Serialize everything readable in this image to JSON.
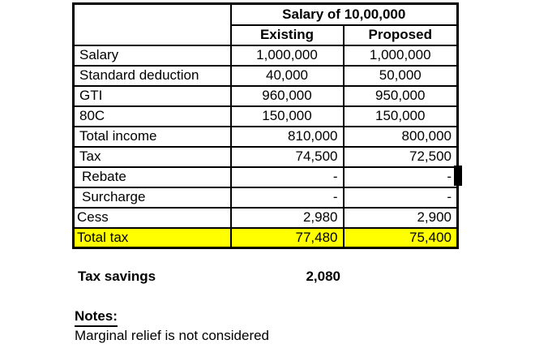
{
  "table": {
    "header": {
      "title": "Salary of 10,00,000",
      "col_existing": "Existing",
      "col_proposed": "Proposed"
    },
    "rows": [
      {
        "label": "Salary",
        "existing": "1,000,000",
        "proposed": "1,000,000",
        "align": "center",
        "highlight": false
      },
      {
        "label": "Standard deduction",
        "existing": "40,000",
        "proposed": "50,000",
        "align": "center",
        "highlight": false
      },
      {
        "label": "GTI",
        "existing": "960,000",
        "proposed": "950,000",
        "align": "center",
        "highlight": false
      },
      {
        "label": "80C",
        "existing": "150,000",
        "proposed": "150,000",
        "align": "center",
        "highlight": false
      },
      {
        "label": "Total income",
        "existing": "810,000",
        "proposed": "800,000",
        "align": "right",
        "highlight": false
      },
      {
        "label": "Tax",
        "existing": "74,500",
        "proposed": "72,500",
        "align": "right",
        "highlight": false
      },
      {
        "label": "Rebate",
        "existing": "-",
        "proposed": "-",
        "align": "right",
        "highlight": false
      },
      {
        "label": "Surcharge",
        "existing": "-",
        "proposed": "-",
        "align": "right",
        "highlight": false
      },
      {
        "label": "Cess",
        "existing": "2,980",
        "proposed": "2,900",
        "align": "right",
        "highlight": false
      },
      {
        "label": "Total tax",
        "existing": "77,480",
        "proposed": "75,400",
        "align": "right",
        "highlight": true
      }
    ],
    "highlight_color": "#ffff00",
    "border_color": "#000000"
  },
  "summary": {
    "label": "Tax savings",
    "value": "2,080"
  },
  "notes": {
    "heading": "Notes:",
    "line": "Marginal relief is not considered"
  }
}
